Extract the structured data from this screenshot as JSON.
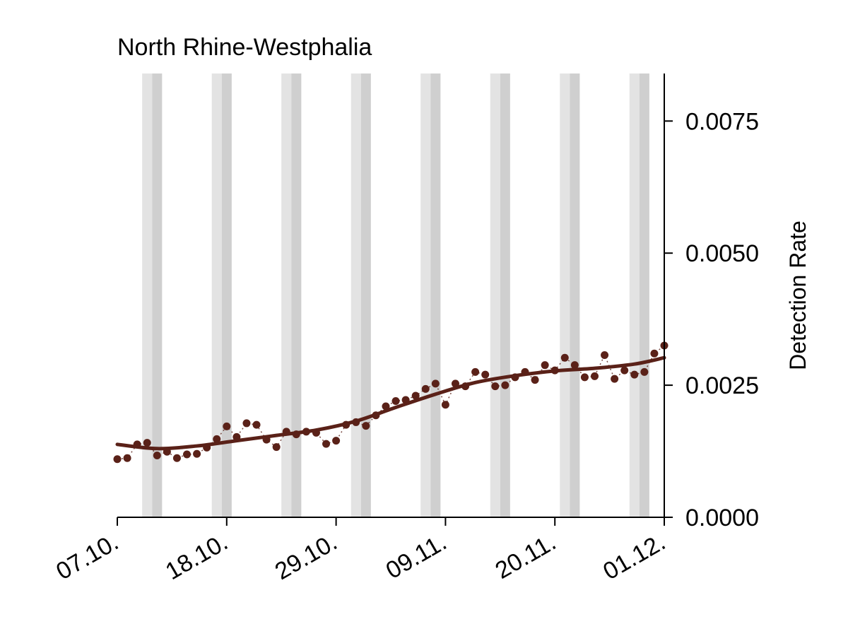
{
  "chart_data": {
    "type": "line",
    "title": "North Rhine-Westphalia",
    "xlabel": "",
    "ylabel": "Detection Rate",
    "x_axis": {
      "min": "2020-10-07",
      "max": "2020-12-01",
      "ticks": [
        "2020-10-07",
        "2020-10-18",
        "2020-10-29",
        "2020-11-09",
        "2020-11-20",
        "2020-12-01"
      ],
      "tick_labels": [
        "07.10.",
        "18.10.",
        "29.10.",
        "09.11.",
        "20.11.",
        "01.12."
      ]
    },
    "y_axis": {
      "side": "right",
      "ylim": [
        0.0,
        0.0084
      ],
      "ticks": [
        0.0,
        0.0025,
        0.005,
        0.0075
      ],
      "tick_labels": [
        "0.0000",
        "0.0025",
        "0.0050",
        "0.0075"
      ]
    },
    "grid": false,
    "legend": "none",
    "weekend_shading": [
      {
        "saturday": "2020-10-10",
        "sunday": "2020-10-11"
      },
      {
        "saturday": "2020-10-17",
        "sunday": "2020-10-18"
      },
      {
        "saturday": "2020-10-24",
        "sunday": "2020-10-25"
      },
      {
        "saturday": "2020-10-31",
        "sunday": "2020-11-01"
      },
      {
        "saturday": "2020-11-07",
        "sunday": "2020-11-08"
      },
      {
        "saturday": "2020-11-14",
        "sunday": "2020-11-15"
      },
      {
        "saturday": "2020-11-21",
        "sunday": "2020-11-22"
      },
      {
        "saturday": "2020-11-28",
        "sunday": "2020-11-29"
      }
    ],
    "series": [
      {
        "color": "#5a2118",
        "points": [
          [
            "2020-10-07",
            0.0011
          ],
          [
            "2020-10-08",
            0.00112
          ],
          [
            "2020-10-09",
            0.00138
          ],
          [
            "2020-10-10",
            0.00141
          ],
          [
            "2020-10-11",
            0.00117
          ],
          [
            "2020-10-12",
            0.00124
          ],
          [
            "2020-10-13",
            0.00112
          ],
          [
            "2020-10-14",
            0.00119
          ],
          [
            "2020-10-15",
            0.0012
          ],
          [
            "2020-10-16",
            0.00132
          ],
          [
            "2020-10-17",
            0.00148
          ],
          [
            "2020-10-18",
            0.00172
          ],
          [
            "2020-10-19",
            0.00152
          ],
          [
            "2020-10-20",
            0.00178
          ],
          [
            "2020-10-21",
            0.00175
          ],
          [
            "2020-10-22",
            0.00147
          ],
          [
            "2020-10-23",
            0.00133
          ],
          [
            "2020-10-24",
            0.00162
          ],
          [
            "2020-10-25",
            0.00157
          ],
          [
            "2020-10-26",
            0.00162
          ],
          [
            "2020-10-27",
            0.0016
          ],
          [
            "2020-10-28",
            0.00139
          ],
          [
            "2020-10-29",
            0.00145
          ],
          [
            "2020-10-30",
            0.00175
          ],
          [
            "2020-10-31",
            0.0018
          ],
          [
            "2020-11-01",
            0.00173
          ],
          [
            "2020-11-02",
            0.00193
          ],
          [
            "2020-11-03",
            0.0021
          ],
          [
            "2020-11-04",
            0.0022
          ],
          [
            "2020-11-05",
            0.00222
          ],
          [
            "2020-11-06",
            0.0023
          ],
          [
            "2020-11-07",
            0.00243
          ],
          [
            "2020-11-08",
            0.00253
          ],
          [
            "2020-11-09",
            0.00213
          ],
          [
            "2020-11-10",
            0.00253
          ],
          [
            "2020-11-11",
            0.00248
          ],
          [
            "2020-11-12",
            0.00275
          ],
          [
            "2020-11-13",
            0.0027
          ],
          [
            "2020-11-14",
            0.00248
          ],
          [
            "2020-11-15",
            0.0025
          ],
          [
            "2020-11-16",
            0.00265
          ],
          [
            "2020-11-17",
            0.00275
          ],
          [
            "2020-11-18",
            0.0026
          ],
          [
            "2020-11-19",
            0.00288
          ],
          [
            "2020-11-20",
            0.00278
          ],
          [
            "2020-11-21",
            0.00302
          ],
          [
            "2020-11-22",
            0.00288
          ],
          [
            "2020-11-23",
            0.00265
          ],
          [
            "2020-11-24",
            0.00267
          ],
          [
            "2020-11-25",
            0.00307
          ],
          [
            "2020-11-26",
            0.00262
          ],
          [
            "2020-11-27",
            0.00278
          ],
          [
            "2020-11-28",
            0.0027
          ],
          [
            "2020-11-29",
            0.00275
          ],
          [
            "2020-11-30",
            0.0031
          ],
          [
            "2020-12-01",
            0.00325
          ]
        ],
        "trend": [
          [
            "2020-10-07",
            0.00138
          ],
          [
            "2020-10-11",
            0.0013
          ],
          [
            "2020-10-15",
            0.00135
          ],
          [
            "2020-10-19",
            0.00145
          ],
          [
            "2020-10-23",
            0.00155
          ],
          [
            "2020-10-27",
            0.00165
          ],
          [
            "2020-10-31",
            0.00182
          ],
          [
            "2020-11-04",
            0.00208
          ],
          [
            "2020-11-08",
            0.00233
          ],
          [
            "2020-11-12",
            0.00255
          ],
          [
            "2020-11-16",
            0.00268
          ],
          [
            "2020-11-20",
            0.00277
          ],
          [
            "2020-11-24",
            0.00282
          ],
          [
            "2020-11-28",
            0.0029
          ],
          [
            "2020-12-01",
            0.00302
          ]
        ]
      }
    ]
  }
}
